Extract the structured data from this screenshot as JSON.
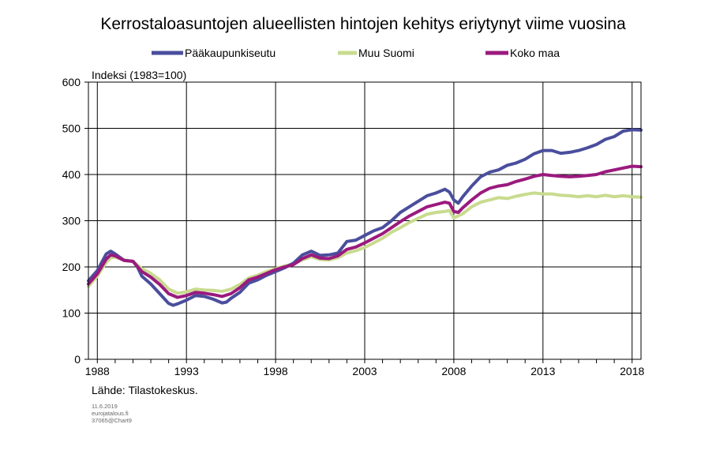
{
  "chart_data": {
    "type": "line",
    "title": "Kerrostaloasuntojen alueellisten hintojen kehitys eriytynyt viime vuosina",
    "ylabel": "Indeksi (1983=100)",
    "xlabel": "",
    "xlim": [
      1987.5,
      2018.5
    ],
    "ylim": [
      0,
      600
    ],
    "yticks": [
      0,
      100,
      200,
      300,
      400,
      500,
      600
    ],
    "xtick_labels": [
      "1988",
      "1993",
      "1998",
      "2003",
      "2008",
      "2013",
      "2018"
    ],
    "grid": true,
    "legend_position": "top",
    "source": "Lähde: Tilastokeskus.",
    "footnote": [
      "11.6.2019",
      "eurojatalous.fi",
      "37065@Chart9"
    ],
    "series": [
      {
        "name": "Pääkaupunkiseutu",
        "color": "#4a4e9c",
        "points": [
          [
            1987.5,
            170
          ],
          [
            1988.0,
            192
          ],
          [
            1988.5,
            228
          ],
          [
            1988.75,
            234
          ],
          [
            1989.0,
            228
          ],
          [
            1989.5,
            214
          ],
          [
            1990.0,
            212
          ],
          [
            1990.25,
            200
          ],
          [
            1990.5,
            180
          ],
          [
            1991.0,
            163
          ],
          [
            1991.5,
            142
          ],
          [
            1992.0,
            121
          ],
          [
            1992.25,
            117
          ],
          [
            1992.5,
            120
          ],
          [
            1993.0,
            128
          ],
          [
            1993.5,
            138
          ],
          [
            1994.0,
            136
          ],
          [
            1994.5,
            130
          ],
          [
            1995.0,
            122
          ],
          [
            1995.25,
            124
          ],
          [
            1995.5,
            132
          ],
          [
            1996.0,
            145
          ],
          [
            1996.5,
            165
          ],
          [
            1997.0,
            172
          ],
          [
            1997.5,
            182
          ],
          [
            1998.0,
            190
          ],
          [
            1998.5,
            198
          ],
          [
            1999.0,
            208
          ],
          [
            1999.5,
            226
          ],
          [
            2000.0,
            234
          ],
          [
            2000.5,
            225
          ],
          [
            2001.0,
            226
          ],
          [
            2001.5,
            230
          ],
          [
            2002.0,
            255
          ],
          [
            2002.5,
            258
          ],
          [
            2003.0,
            268
          ],
          [
            2003.5,
            278
          ],
          [
            2004.0,
            285
          ],
          [
            2004.5,
            300
          ],
          [
            2005.0,
            318
          ],
          [
            2005.5,
            330
          ],
          [
            2006.0,
            342
          ],
          [
            2006.5,
            354
          ],
          [
            2007.0,
            360
          ],
          [
            2007.5,
            368
          ],
          [
            2007.75,
            362
          ],
          [
            2008.0,
            345
          ],
          [
            2008.25,
            338
          ],
          [
            2008.5,
            352
          ],
          [
            2009.0,
            375
          ],
          [
            2009.5,
            395
          ],
          [
            2010.0,
            405
          ],
          [
            2010.5,
            410
          ],
          [
            2011.0,
            420
          ],
          [
            2011.5,
            425
          ],
          [
            2012.0,
            433
          ],
          [
            2012.5,
            445
          ],
          [
            2013.0,
            452
          ],
          [
            2013.5,
            452
          ],
          [
            2014.0,
            446
          ],
          [
            2014.5,
            448
          ],
          [
            2015.0,
            452
          ],
          [
            2015.5,
            458
          ],
          [
            2016.0,
            465
          ],
          [
            2016.5,
            476
          ],
          [
            2017.0,
            482
          ],
          [
            2017.5,
            494
          ],
          [
            2018.0,
            497
          ],
          [
            2018.5,
            496
          ]
        ]
      },
      {
        "name": "Muu Suomi",
        "color": "#c9db8f",
        "points": [
          [
            1987.5,
            158
          ],
          [
            1988.0,
            180
          ],
          [
            1988.5,
            210
          ],
          [
            1988.75,
            220
          ],
          [
            1989.0,
            221
          ],
          [
            1989.5,
            215
          ],
          [
            1990.0,
            212
          ],
          [
            1990.5,
            196
          ],
          [
            1991.0,
            186
          ],
          [
            1991.5,
            172
          ],
          [
            1992.0,
            152
          ],
          [
            1992.5,
            143
          ],
          [
            1993.0,
            146
          ],
          [
            1993.5,
            152
          ],
          [
            1994.0,
            150
          ],
          [
            1994.5,
            149
          ],
          [
            1995.0,
            147
          ],
          [
            1995.5,
            152
          ],
          [
            1996.0,
            162
          ],
          [
            1996.5,
            176
          ],
          [
            1997.0,
            182
          ],
          [
            1997.5,
            190
          ],
          [
            1998.0,
            196
          ],
          [
            1998.5,
            202
          ],
          [
            1999.0,
            206
          ],
          [
            1999.5,
            215
          ],
          [
            2000.0,
            222
          ],
          [
            2000.5,
            216
          ],
          [
            2001.0,
            215
          ],
          [
            2001.5,
            220
          ],
          [
            2002.0,
            230
          ],
          [
            2002.5,
            235
          ],
          [
            2003.0,
            242
          ],
          [
            2003.5,
            252
          ],
          [
            2004.0,
            262
          ],
          [
            2004.5,
            275
          ],
          [
            2005.0,
            285
          ],
          [
            2005.5,
            296
          ],
          [
            2006.0,
            305
          ],
          [
            2006.5,
            314
          ],
          [
            2007.0,
            318
          ],
          [
            2007.5,
            320
          ],
          [
            2007.75,
            322
          ],
          [
            2008.0,
            306
          ],
          [
            2008.5,
            315
          ],
          [
            2009.0,
            330
          ],
          [
            2009.5,
            340
          ],
          [
            2010.0,
            345
          ],
          [
            2010.5,
            350
          ],
          [
            2011.0,
            348
          ],
          [
            2011.5,
            353
          ],
          [
            2012.0,
            357
          ],
          [
            2012.5,
            360
          ],
          [
            2013.0,
            358
          ],
          [
            2013.5,
            358
          ],
          [
            2014.0,
            355
          ],
          [
            2014.5,
            354
          ],
          [
            2015.0,
            352
          ],
          [
            2015.5,
            354
          ],
          [
            2016.0,
            352
          ],
          [
            2016.5,
            355
          ],
          [
            2017.0,
            352
          ],
          [
            2017.5,
            354
          ],
          [
            2018.0,
            352
          ],
          [
            2018.5,
            351
          ]
        ]
      },
      {
        "name": "Koko maa",
        "color": "#9b1a7e",
        "points": [
          [
            1987.5,
            163
          ],
          [
            1988.0,
            185
          ],
          [
            1988.5,
            217
          ],
          [
            1988.75,
            226
          ],
          [
            1989.0,
            224
          ],
          [
            1989.5,
            214
          ],
          [
            1990.0,
            212
          ],
          [
            1990.5,
            190
          ],
          [
            1991.0,
            178
          ],
          [
            1991.5,
            162
          ],
          [
            1992.0,
            142
          ],
          [
            1992.5,
            134
          ],
          [
            1993.0,
            138
          ],
          [
            1993.5,
            145
          ],
          [
            1994.0,
            143
          ],
          [
            1994.5,
            140
          ],
          [
            1995.0,
            136
          ],
          [
            1995.5,
            142
          ],
          [
            1996.0,
            155
          ],
          [
            1996.5,
            172
          ],
          [
            1997.0,
            178
          ],
          [
            1997.5,
            186
          ],
          [
            1998.0,
            194
          ],
          [
            1998.5,
            200
          ],
          [
            1999.0,
            205
          ],
          [
            1999.5,
            218
          ],
          [
            2000.0,
            226
          ],
          [
            2000.5,
            219
          ],
          [
            2001.0,
            218
          ],
          [
            2001.5,
            224
          ],
          [
            2002.0,
            238
          ],
          [
            2002.5,
            243
          ],
          [
            2003.0,
            252
          ],
          [
            2003.5,
            262
          ],
          [
            2004.0,
            272
          ],
          [
            2004.5,
            285
          ],
          [
            2005.0,
            298
          ],
          [
            2005.5,
            310
          ],
          [
            2006.0,
            320
          ],
          [
            2006.5,
            330
          ],
          [
            2007.0,
            335
          ],
          [
            2007.5,
            340
          ],
          [
            2007.75,
            338
          ],
          [
            2008.0,
            320
          ],
          [
            2008.25,
            318
          ],
          [
            2008.5,
            328
          ],
          [
            2009.0,
            345
          ],
          [
            2009.5,
            360
          ],
          [
            2010.0,
            370
          ],
          [
            2010.5,
            375
          ],
          [
            2011.0,
            378
          ],
          [
            2011.5,
            385
          ],
          [
            2012.0,
            390
          ],
          [
            2012.5,
            396
          ],
          [
            2013.0,
            400
          ],
          [
            2013.5,
            398
          ],
          [
            2014.0,
            396
          ],
          [
            2014.5,
            395
          ],
          [
            2015.0,
            396
          ],
          [
            2015.5,
            398
          ],
          [
            2016.0,
            400
          ],
          [
            2016.5,
            406
          ],
          [
            2017.0,
            410
          ],
          [
            2017.5,
            414
          ],
          [
            2018.0,
            418
          ],
          [
            2018.5,
            417
          ]
        ]
      }
    ]
  }
}
